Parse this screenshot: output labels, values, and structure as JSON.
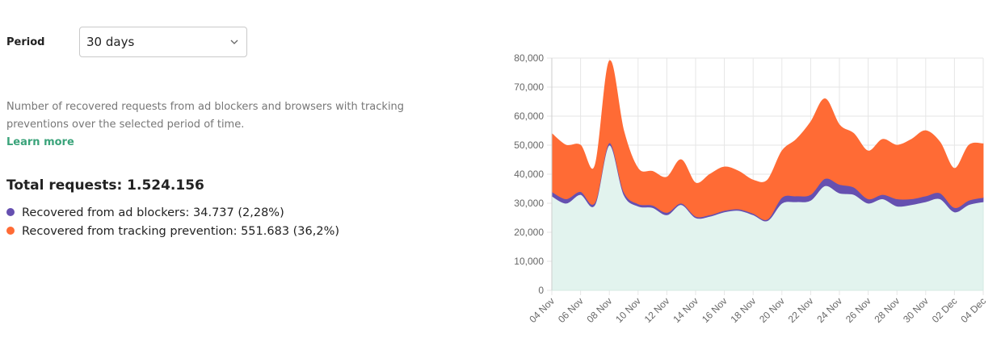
{
  "panel": {
    "period_label": "Period",
    "period_value": "30 days",
    "description_lines": [
      "Number of recovered requests from ad blockers and browsers with tracking",
      "preventions over the selected period of time."
    ],
    "link": "Learn more",
    "total": "Total requests: 1.524.156",
    "legend": [
      "Recovered from ad blockers: 34.737 (2,28%)",
      "Recovered from tracking prevention: 551.683 (36,2%)"
    ]
  },
  "chart_data": {
    "type": "stacked_area",
    "categories": [
      "04 Nov",
      null,
      "06 Nov",
      null,
      "08 Nov",
      null,
      "10 Nov",
      null,
      "12 Nov",
      null,
      "14 Nov",
      null,
      "16 Nov",
      null,
      "18 Nov",
      null,
      "20 Nov",
      null,
      "22 Nov",
      null,
      "24 Nov",
      null,
      "26 Nov",
      null,
      "28 Nov",
      null,
      "30 Nov",
      null,
      "02 Dec",
      null,
      "04 Dec"
    ],
    "series": [
      {
        "color": "#e2f3ee",
        "values": [
          32500,
          30000,
          33000,
          29500,
          50000,
          33000,
          29000,
          28500,
          26000,
          29500,
          25000,
          25500,
          27000,
          27500,
          26000,
          24000,
          30000,
          30500,
          31000,
          36000,
          33500,
          33000,
          30000,
          31500,
          29000,
          29500,
          30500,
          31500,
          27000,
          29500,
          30500
        ]
      },
      {
        "color": "#6650b0",
        "values": [
          1500,
          1500,
          1000,
          800,
          800,
          1000,
          800,
          800,
          800,
          500,
          500,
          500,
          500,
          500,
          500,
          500,
          2000,
          2000,
          2000,
          2500,
          3000,
          2500,
          1500,
          1500,
          2500,
          2000,
          2000,
          2000,
          1500,
          1500,
          1500
        ]
      },
      {
        "color": "#ff6b35",
        "values": [
          20000,
          18500,
          16000,
          12700,
          28200,
          21000,
          12200,
          11700,
          12200,
          15000,
          11500,
          14000,
          15000,
          13000,
          11500,
          13500,
          16000,
          19500,
          25000,
          27500,
          20500,
          18500,
          16500,
          19000,
          18500,
          20500,
          22500,
          17500,
          13500,
          19000,
          18500
        ]
      }
    ],
    "ylim": [
      0,
      80000
    ],
    "yticks": [
      0,
      {
        "value": 10000,
        "label": "10,000"
      },
      {
        "value": 20000,
        "label": "20,000"
      },
      {
        "value": 30000,
        "label": "30,000"
      },
      {
        "value": 40000,
        "label": "40,000"
      },
      {
        "value": 50000,
        "label": "50,000"
      },
      {
        "value": 60000,
        "label": "60,000"
      },
      {
        "value": 70000,
        "label": "70,000"
      },
      {
        "value": 80000,
        "label": "80,000"
      }
    ],
    "grid": true
  }
}
